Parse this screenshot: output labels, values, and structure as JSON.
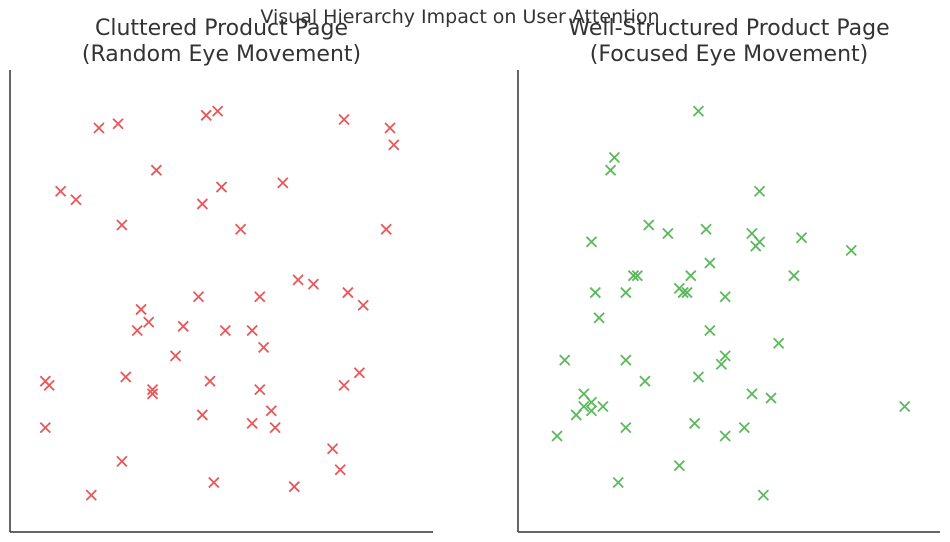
{
  "suptitle": "Visual Hierarchy Impact on User Attention",
  "chart_data": [
    {
      "type": "scatter",
      "title_line1": "Cluttered Product Page",
      "title_line2": "(Random Eye Movement)",
      "marker": "x",
      "color": "#e8575a",
      "xlim": [
        0,
        1
      ],
      "ylim": [
        0,
        1
      ],
      "grid": false,
      "points": [
        [
          0.18,
          0.91
        ],
        [
          0.23,
          0.92
        ],
        [
          0.46,
          0.94
        ],
        [
          0.49,
          0.95
        ],
        [
          0.82,
          0.93
        ],
        [
          0.94,
          0.91
        ],
        [
          0.95,
          0.87
        ],
        [
          0.33,
          0.81
        ],
        [
          0.08,
          0.76
        ],
        [
          0.12,
          0.74
        ],
        [
          0.5,
          0.77
        ],
        [
          0.66,
          0.78
        ],
        [
          0.45,
          0.73
        ],
        [
          0.24,
          0.68
        ],
        [
          0.55,
          0.67
        ],
        [
          0.93,
          0.67
        ],
        [
          0.7,
          0.55
        ],
        [
          0.74,
          0.54
        ],
        [
          0.83,
          0.52
        ],
        [
          0.44,
          0.51
        ],
        [
          0.6,
          0.51
        ],
        [
          0.87,
          0.49
        ],
        [
          0.29,
          0.48
        ],
        [
          0.31,
          0.45
        ],
        [
          0.28,
          0.43
        ],
        [
          0.4,
          0.44
        ],
        [
          0.51,
          0.43
        ],
        [
          0.58,
          0.43
        ],
        [
          0.61,
          0.39
        ],
        [
          0.38,
          0.37
        ],
        [
          0.86,
          0.33
        ],
        [
          0.25,
          0.32
        ],
        [
          0.47,
          0.31
        ],
        [
          0.82,
          0.3
        ],
        [
          0.04,
          0.31
        ],
        [
          0.05,
          0.3
        ],
        [
          0.32,
          0.29
        ],
        [
          0.32,
          0.28
        ],
        [
          0.6,
          0.29
        ],
        [
          0.63,
          0.24
        ],
        [
          0.45,
          0.23
        ],
        [
          0.58,
          0.21
        ],
        [
          0.64,
          0.2
        ],
        [
          0.04,
          0.2
        ],
        [
          0.79,
          0.15
        ],
        [
          0.81,
          0.1
        ],
        [
          0.24,
          0.12
        ],
        [
          0.48,
          0.07
        ],
        [
          0.69,
          0.06
        ],
        [
          0.16,
          0.04
        ]
      ]
    },
    {
      "type": "scatter",
      "title_line1": "Well-Structured Product Page",
      "title_line2": "(Focused Eye Movement)",
      "marker": "x",
      "color": "#5cb85c",
      "xlim": [
        0,
        1
      ],
      "ylim": [
        0,
        1
      ],
      "grid": false,
      "points": [
        [
          0.42,
          0.95
        ],
        [
          0.2,
          0.84
        ],
        [
          0.19,
          0.81
        ],
        [
          0.58,
          0.76
        ],
        [
          0.29,
          0.68
        ],
        [
          0.44,
          0.67
        ],
        [
          0.34,
          0.66
        ],
        [
          0.14,
          0.64
        ],
        [
          0.56,
          0.66
        ],
        [
          0.58,
          0.64
        ],
        [
          0.57,
          0.63
        ],
        [
          0.69,
          0.65
        ],
        [
          0.82,
          0.62
        ],
        [
          0.45,
          0.59
        ],
        [
          0.26,
          0.56
        ],
        [
          0.25,
          0.56
        ],
        [
          0.4,
          0.56
        ],
        [
          0.67,
          0.56
        ],
        [
          0.37,
          0.53
        ],
        [
          0.39,
          0.52
        ],
        [
          0.38,
          0.52
        ],
        [
          0.15,
          0.52
        ],
        [
          0.23,
          0.52
        ],
        [
          0.49,
          0.51
        ],
        [
          0.16,
          0.46
        ],
        [
          0.45,
          0.43
        ],
        [
          0.63,
          0.4
        ],
        [
          0.49,
          0.37
        ],
        [
          0.07,
          0.36
        ],
        [
          0.23,
          0.36
        ],
        [
          0.48,
          0.35
        ],
        [
          0.42,
          0.32
        ],
        [
          0.28,
          0.31
        ],
        [
          0.12,
          0.28
        ],
        [
          0.56,
          0.28
        ],
        [
          0.61,
          0.27
        ],
        [
          0.14,
          0.26
        ],
        [
          0.12,
          0.25
        ],
        [
          0.17,
          0.25
        ],
        [
          0.14,
          0.24
        ],
        [
          0.1,
          0.23
        ],
        [
          0.96,
          0.25
        ],
        [
          0.41,
          0.21
        ],
        [
          0.23,
          0.2
        ],
        [
          0.54,
          0.2
        ],
        [
          0.49,
          0.18
        ],
        [
          0.05,
          0.18
        ],
        [
          0.37,
          0.11
        ],
        [
          0.21,
          0.07
        ],
        [
          0.59,
          0.04
        ]
      ]
    }
  ]
}
